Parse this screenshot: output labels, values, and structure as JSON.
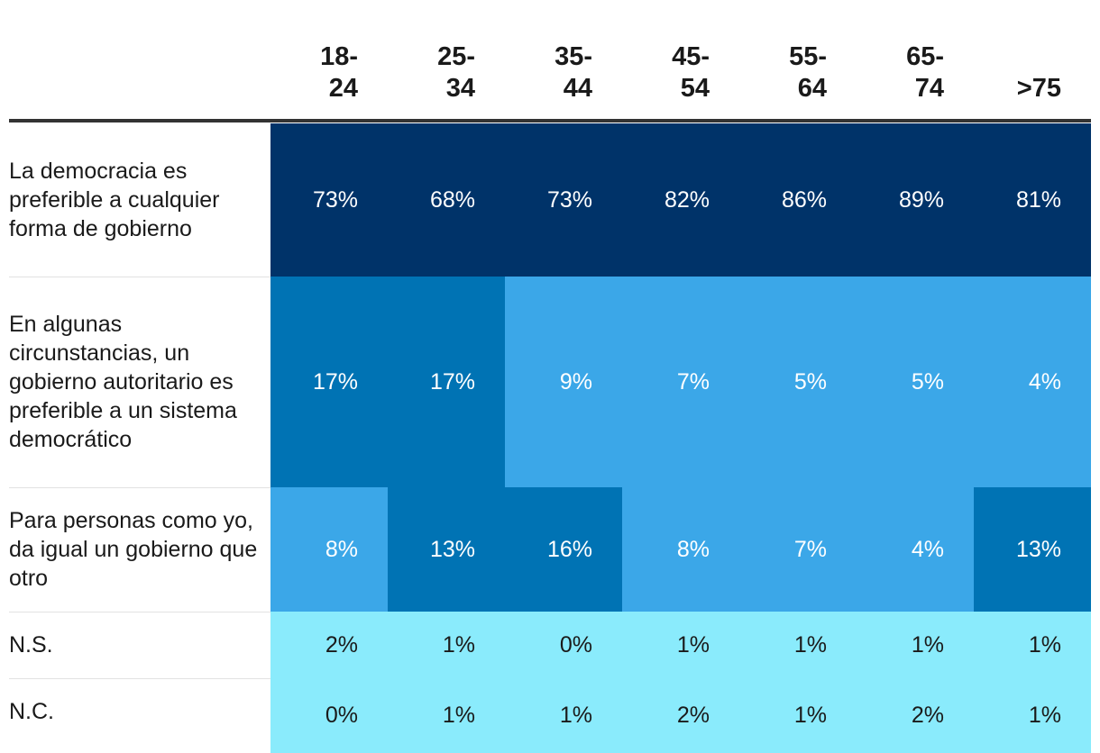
{
  "chart_data": {
    "type": "heatmap",
    "title": "",
    "columns": [
      {
        "line1": "18-",
        "line2": "24"
      },
      {
        "line1": "25-",
        "line2": "34"
      },
      {
        "line1": "35-",
        "line2": "44"
      },
      {
        "line1": "45-",
        "line2": "54"
      },
      {
        "line1": "55-",
        "line2": "64"
      },
      {
        "line1": "65-",
        "line2": "74"
      },
      {
        "line1": "",
        "line2": ">75"
      }
    ],
    "rows": [
      {
        "label": "La democracia es preferible a cualquier forma de gobierno",
        "values": [
          "73%",
          "68%",
          "73%",
          "82%",
          "86%",
          "89%",
          "81%"
        ]
      },
      {
        "label": "En algunas circunstancias, un gobierno autoritario es preferible a un sistema democrático",
        "values": [
          "17%",
          "17%",
          "9%",
          "7%",
          "5%",
          "5%",
          "4%"
        ]
      },
      {
        "label": "Para personas como yo, da igual un gobierno que otro",
        "values": [
          "8%",
          "13%",
          "16%",
          "8%",
          "7%",
          "4%",
          "13%"
        ]
      },
      {
        "label": "N.S.",
        "values": [
          "2%",
          "1%",
          "0%",
          "1%",
          "1%",
          "1%",
          "1%"
        ]
      },
      {
        "label": "N.C.",
        "values": [
          "0%",
          "1%",
          "1%",
          "2%",
          "1%",
          "2%",
          "1%"
        ]
      }
    ],
    "colors": {
      "darkest": "#003369",
      "dark": "#0073b4",
      "medium": "#3ba7e8",
      "light": "#8aebfc",
      "text_light": "#ffffff",
      "text_dark": "#1a1a1a"
    }
  }
}
